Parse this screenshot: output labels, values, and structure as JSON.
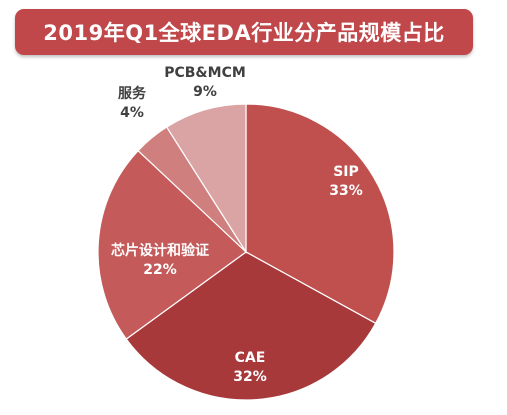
{
  "chart_data": {
    "type": "pie",
    "title": "2019年Q1全球EDA行业分产品规模占比",
    "slices": [
      {
        "label": "SIP",
        "value": 33,
        "value_label": "33%",
        "color": "#c0504d"
      },
      {
        "label": "CAE",
        "value": 32,
        "value_label": "32%",
        "color": "#a8393b"
      },
      {
        "label": "芯片设计和验证",
        "value": 22,
        "value_label": "22%",
        "color": "#c45a5a"
      },
      {
        "label": "服务",
        "value": 4,
        "value_label": "4%",
        "color": "#d07f7f"
      },
      {
        "label": "PCB&MCM",
        "value": 9,
        "value_label": "9%",
        "color": "#dba4a4"
      }
    ],
    "legend": "none",
    "label_text_colors": {
      "inside": "#ffffff",
      "outside": "#404040"
    }
  }
}
